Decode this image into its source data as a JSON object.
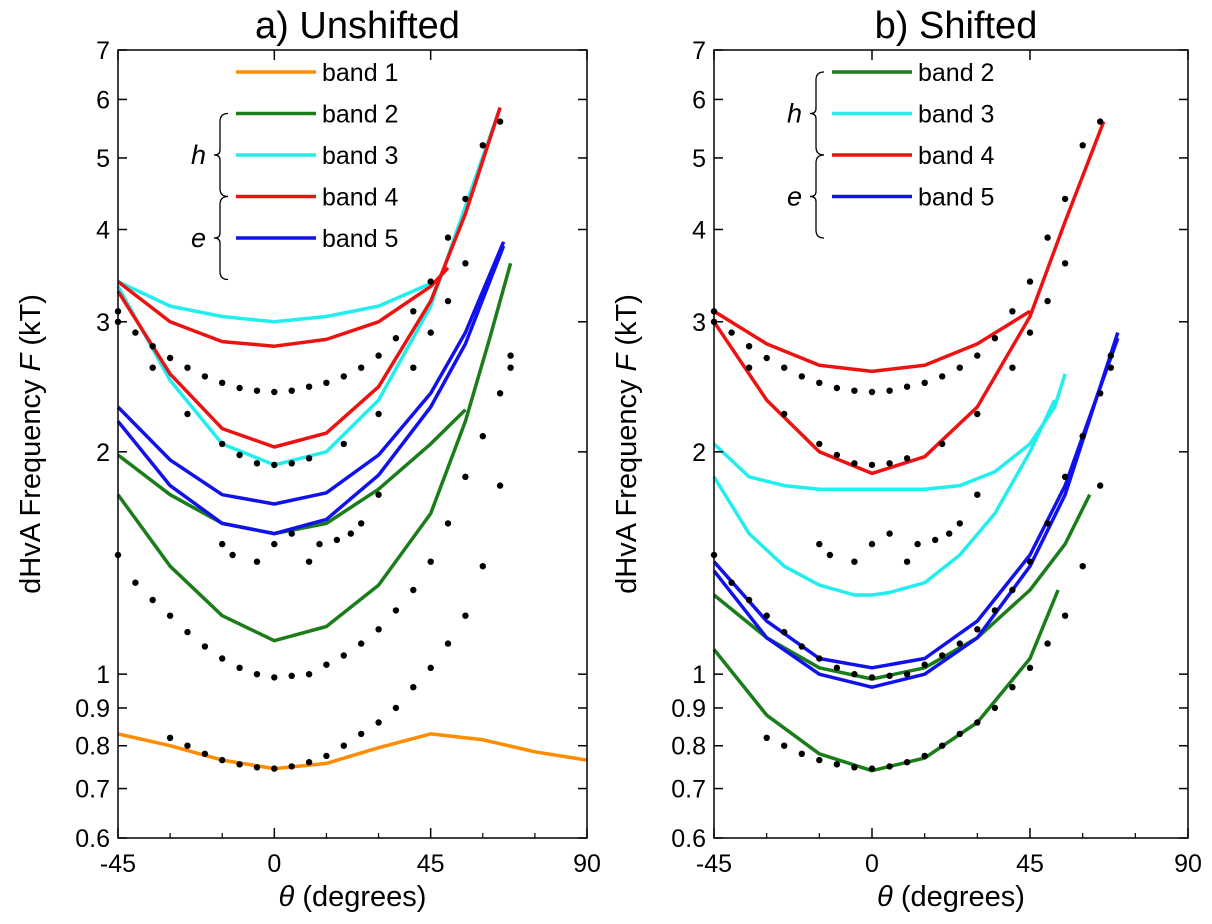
{
  "chart_data": [
    {
      "type": "line",
      "title": "a) Unshifted",
      "xlabel_sym": "θ",
      "xlabel_rest": "(degrees)",
      "ylabel_pre": "dHvA Frequency ",
      "ylabel_sym": "F",
      "ylabel_post": "(kT)",
      "xlim": [
        -45,
        90
      ],
      "ylim": [
        0.6,
        7
      ],
      "ylog": true,
      "xticks": [
        "-45",
        "0",
        "45",
        "90"
      ],
      "yticks": [
        "0.6",
        "0.7",
        "0.8",
        "0.9",
        "1",
        "2",
        "3",
        "4",
        "5",
        "6",
        "7"
      ],
      "legend_groups": [
        {
          "label": "h",
          "range": [
            1,
            3
          ]
        },
        {
          "label": "e",
          "range": [
            3,
            5
          ]
        }
      ],
      "legend": [
        {
          "name": "band 1",
          "color": "#ff8c00"
        },
        {
          "name": "band 2",
          "color": "#1a7d1a"
        },
        {
          "name": "band 3",
          "color": "#22eeee"
        },
        {
          "name": "band 4",
          "color": "#ee1111"
        },
        {
          "name": "band 5",
          "color": "#1111ee"
        }
      ],
      "series": [
        {
          "name": "band 1",
          "color": "#ff8c00",
          "x": [
            -45,
            -30,
            -15,
            0,
            15,
            30,
            45,
            60,
            75,
            90
          ],
          "y": [
            0.83,
            0.8,
            0.765,
            0.745,
            0.757,
            0.795,
            0.83,
            0.815,
            0.785,
            0.765
          ]
        },
        {
          "name": "band 2",
          "color": "#1a7d1a",
          "x": [
            -45,
            -30,
            -15,
            0,
            15,
            30,
            45,
            55,
            62,
            68
          ],
          "y": [
            1.75,
            1.4,
            1.2,
            1.11,
            1.16,
            1.32,
            1.65,
            2.2,
            2.85,
            3.6
          ]
        },
        {
          "name": "band 2",
          "color": "#1a7d1a",
          "x": [
            -45,
            -30,
            -15,
            0,
            15,
            30,
            45,
            55
          ],
          "y": [
            1.98,
            1.75,
            1.6,
            1.55,
            1.6,
            1.78,
            2.05,
            2.28
          ]
        },
        {
          "name": "band 3",
          "color": "#22eeee",
          "x": [
            -45,
            -30,
            -15,
            0,
            15,
            30,
            45,
            55,
            65
          ],
          "y": [
            3.35,
            2.5,
            2.05,
            1.92,
            2.0,
            2.35,
            3.15,
            4.3,
            5.85
          ]
        },
        {
          "name": "band 3",
          "color": "#22eeee",
          "x": [
            -45,
            -30,
            -15,
            0,
            15,
            30,
            45
          ],
          "y": [
            3.4,
            3.15,
            3.05,
            3.0,
            3.05,
            3.15,
            3.38
          ]
        },
        {
          "name": "band 4",
          "color": "#ee1111",
          "x": [
            -45,
            -30,
            -15,
            0,
            15,
            30,
            45,
            55,
            65
          ],
          "y": [
            3.3,
            2.55,
            2.15,
            2.03,
            2.12,
            2.45,
            3.2,
            4.2,
            5.85
          ]
        },
        {
          "name": "band 4",
          "color": "#ee1111",
          "x": [
            -45,
            -30,
            -15,
            0,
            15,
            30,
            45,
            50
          ],
          "y": [
            3.4,
            3.0,
            2.82,
            2.78,
            2.84,
            3.0,
            3.35,
            3.55
          ]
        },
        {
          "name": "band 5",
          "color": "#1111ee",
          "x": [
            -45,
            -30,
            -15,
            0,
            15,
            30,
            45,
            55,
            66
          ],
          "y": [
            2.3,
            1.95,
            1.75,
            1.7,
            1.76,
            1.98,
            2.4,
            2.9,
            3.85
          ]
        },
        {
          "name": "band 5",
          "color": "#1111ee",
          "x": [
            -45,
            -30,
            -15,
            0,
            15,
            30,
            45,
            55,
            66
          ],
          "y": [
            2.2,
            1.8,
            1.6,
            1.55,
            1.62,
            1.86,
            2.3,
            2.8,
            3.8
          ]
        }
      ],
      "scatter": [
        {
          "name": "data-1",
          "x": [
            -30,
            -25,
            -20,
            -15,
            -10,
            -5,
            0,
            5,
            10,
            15,
            20,
            25,
            30,
            35,
            40,
            45,
            50,
            55,
            60,
            65,
            68
          ],
          "y": [
            0.82,
            0.8,
            0.78,
            0.765,
            0.755,
            0.748,
            0.745,
            0.75,
            0.76,
            0.775,
            0.8,
            0.83,
            0.86,
            0.9,
            0.96,
            1.02,
            1.1,
            1.2,
            1.4,
            1.8,
            2.6
          ]
        },
        {
          "name": "data-2",
          "x": [
            -45,
            -40,
            -35,
            -30,
            -25,
            -20,
            -15,
            -10,
            -5,
            0,
            5,
            10,
            15,
            20,
            25,
            30,
            35,
            40,
            45,
            50,
            55,
            60,
            65,
            68
          ],
          "y": [
            1.45,
            1.33,
            1.26,
            1.2,
            1.14,
            1.09,
            1.05,
            1.02,
            1.0,
            0.99,
            0.995,
            1.0,
            1.03,
            1.06,
            1.1,
            1.15,
            1.22,
            1.3,
            1.42,
            1.6,
            1.85,
            2.1,
            2.4,
            2.7
          ]
        },
        {
          "name": "data-3",
          "x": [
            -45,
            -40,
            -35,
            -30,
            -25,
            -20,
            -15,
            -10,
            -5,
            0,
            5,
            10,
            15,
            20,
            25,
            30,
            35,
            40,
            45,
            50,
            55,
            60,
            65
          ],
          "y": [
            3.1,
            2.9,
            2.78,
            2.68,
            2.6,
            2.53,
            2.48,
            2.44,
            2.42,
            2.41,
            2.42,
            2.45,
            2.48,
            2.53,
            2.6,
            2.7,
            2.85,
            3.1,
            3.4,
            3.9,
            4.4,
            5.2,
            5.6
          ]
        },
        {
          "name": "data-4",
          "x": [
            -45,
            -35,
            -25,
            -15,
            -10,
            -5,
            0,
            5,
            10,
            20,
            30,
            40,
            45,
            50,
            55
          ],
          "y": [
            3.0,
            2.6,
            2.25,
            2.05,
            1.98,
            1.93,
            1.92,
            1.93,
            1.96,
            2.05,
            2.25,
            2.6,
            2.9,
            3.2,
            3.6
          ]
        },
        {
          "name": "data-5",
          "x": [
            -15,
            -12,
            -5,
            0,
            5,
            10,
            13,
            18,
            22,
            25,
            30
          ],
          "y": [
            1.5,
            1.45,
            1.42,
            1.5,
            1.55,
            1.42,
            1.5,
            1.52,
            1.55,
            1.6,
            1.75
          ]
        }
      ]
    },
    {
      "type": "line",
      "title": "b) Shifted",
      "xlabel_sym": "θ",
      "xlabel_rest": "(degrees)",
      "ylabel_pre": "dHvA Frequency ",
      "ylabel_sym": "F",
      "ylabel_post": "(kT)",
      "xlim": [
        -45,
        90
      ],
      "ylim": [
        0.6,
        7
      ],
      "ylog": true,
      "xticks": [
        "-45",
        "0",
        "45",
        "90"
      ],
      "yticks": [
        "0.6",
        "0.7",
        "0.8",
        "0.9",
        "1",
        "2",
        "3",
        "4",
        "5",
        "6",
        "7"
      ],
      "legend_groups": [
        {
          "label": "h",
          "range": [
            0,
            2
          ]
        },
        {
          "label": "e",
          "range": [
            2,
            4
          ]
        }
      ],
      "legend": [
        {
          "name": "band 2",
          "color": "#1a7d1a"
        },
        {
          "name": "band 3",
          "color": "#22eeee"
        },
        {
          "name": "band 4",
          "color": "#ee1111"
        },
        {
          "name": "band 5",
          "color": "#1111ee"
        }
      ],
      "series": [
        {
          "name": "band 2",
          "color": "#1a7d1a",
          "x": [
            -45,
            -30,
            -15,
            0,
            15,
            30,
            45,
            53
          ],
          "y": [
            1.08,
            0.88,
            0.78,
            0.74,
            0.77,
            0.86,
            1.05,
            1.3
          ]
        },
        {
          "name": "band 2",
          "color": "#1a7d1a",
          "x": [
            -45,
            -30,
            -15,
            0,
            15,
            30,
            45,
            55,
            62
          ],
          "y": [
            1.28,
            1.12,
            1.02,
            0.985,
            1.02,
            1.12,
            1.3,
            1.5,
            1.75
          ]
        },
        {
          "name": "band 3",
          "color": "#22eeee",
          "x": [
            -45,
            -35,
            -25,
            -15,
            -5,
            0,
            5,
            15,
            25,
            35,
            45,
            52,
            55
          ],
          "y": [
            2.05,
            1.85,
            1.8,
            1.78,
            1.78,
            1.78,
            1.78,
            1.78,
            1.8,
            1.88,
            2.05,
            2.3,
            2.55
          ]
        },
        {
          "name": "band 3",
          "color": "#22eeee",
          "x": [
            -45,
            -35,
            -25,
            -15,
            -5,
            0,
            5,
            15,
            25,
            35,
            45,
            52
          ],
          "y": [
            1.85,
            1.55,
            1.4,
            1.32,
            1.28,
            1.28,
            1.29,
            1.33,
            1.45,
            1.65,
            2.0,
            2.35
          ]
        },
        {
          "name": "band 4",
          "color": "#ee1111",
          "x": [
            -45,
            -30,
            -15,
            0,
            15,
            30,
            45
          ],
          "y": [
            3.1,
            2.8,
            2.62,
            2.57,
            2.62,
            2.8,
            3.1
          ]
        },
        {
          "name": "band 4",
          "color": "#ee1111",
          "x": [
            -45,
            -30,
            -15,
            0,
            15,
            30,
            45,
            55,
            66
          ],
          "y": [
            3.0,
            2.35,
            2.0,
            1.87,
            1.97,
            2.3,
            3.05,
            4.1,
            5.6
          ]
        },
        {
          "name": "band 5",
          "color": "#1111ee",
          "x": [
            -45,
            -30,
            -15,
            0,
            15,
            30,
            45,
            55,
            70
          ],
          "y": [
            1.42,
            1.18,
            1.05,
            1.02,
            1.05,
            1.18,
            1.45,
            1.8,
            2.85
          ]
        },
        {
          "name": "band 5",
          "color": "#1111ee",
          "x": [
            -45,
            -30,
            -15,
            0,
            15,
            30,
            45,
            55,
            70
          ],
          "y": [
            1.38,
            1.12,
            1.0,
            0.96,
            1.0,
            1.12,
            1.4,
            1.75,
            2.9
          ]
        }
      ],
      "scatter": [
        {
          "name": "data-1",
          "x": [
            -30,
            -25,
            -20,
            -15,
            -10,
            -5,
            0,
            5,
            10,
            15,
            20,
            25,
            30,
            35,
            40,
            45,
            50,
            55,
            60,
            65,
            68
          ],
          "y": [
            0.82,
            0.8,
            0.78,
            0.765,
            0.755,
            0.748,
            0.745,
            0.75,
            0.76,
            0.775,
            0.8,
            0.83,
            0.86,
            0.9,
            0.96,
            1.02,
            1.1,
            1.2,
            1.4,
            1.8,
            2.6
          ]
        },
        {
          "name": "data-2",
          "x": [
            -45,
            -40,
            -35,
            -30,
            -25,
            -20,
            -15,
            -10,
            -5,
            0,
            5,
            10,
            15,
            20,
            25,
            30,
            35,
            40,
            45,
            50,
            55,
            60,
            65,
            68
          ],
          "y": [
            1.45,
            1.33,
            1.26,
            1.2,
            1.14,
            1.09,
            1.05,
            1.02,
            1.0,
            0.99,
            0.995,
            1.0,
            1.03,
            1.06,
            1.1,
            1.15,
            1.22,
            1.3,
            1.42,
            1.6,
            1.85,
            2.1,
            2.4,
            2.7
          ]
        },
        {
          "name": "data-3",
          "x": [
            -45,
            -40,
            -35,
            -30,
            -25,
            -20,
            -15,
            -10,
            -5,
            0,
            5,
            10,
            15,
            20,
            25,
            30,
            35,
            40,
            45,
            50,
            55,
            60,
            65
          ],
          "y": [
            3.1,
            2.9,
            2.78,
            2.68,
            2.6,
            2.53,
            2.48,
            2.44,
            2.42,
            2.41,
            2.42,
            2.45,
            2.48,
            2.53,
            2.6,
            2.7,
            2.85,
            3.1,
            3.4,
            3.9,
            4.4,
            5.2,
            5.6
          ]
        },
        {
          "name": "data-4",
          "x": [
            -45,
            -35,
            -25,
            -15,
            -10,
            -5,
            0,
            5,
            10,
            20,
            30,
            40,
            45,
            50,
            55
          ],
          "y": [
            3.0,
            2.6,
            2.25,
            2.05,
            1.98,
            1.93,
            1.92,
            1.93,
            1.96,
            2.05,
            2.25,
            2.6,
            2.9,
            3.2,
            3.6
          ]
        },
        {
          "name": "data-5",
          "x": [
            -15,
            -12,
            -5,
            0,
            5,
            10,
            13,
            18,
            22,
            25,
            30
          ],
          "y": [
            1.5,
            1.45,
            1.42,
            1.5,
            1.55,
            1.42,
            1.5,
            1.52,
            1.55,
            1.6,
            1.75
          ]
        }
      ]
    }
  ]
}
